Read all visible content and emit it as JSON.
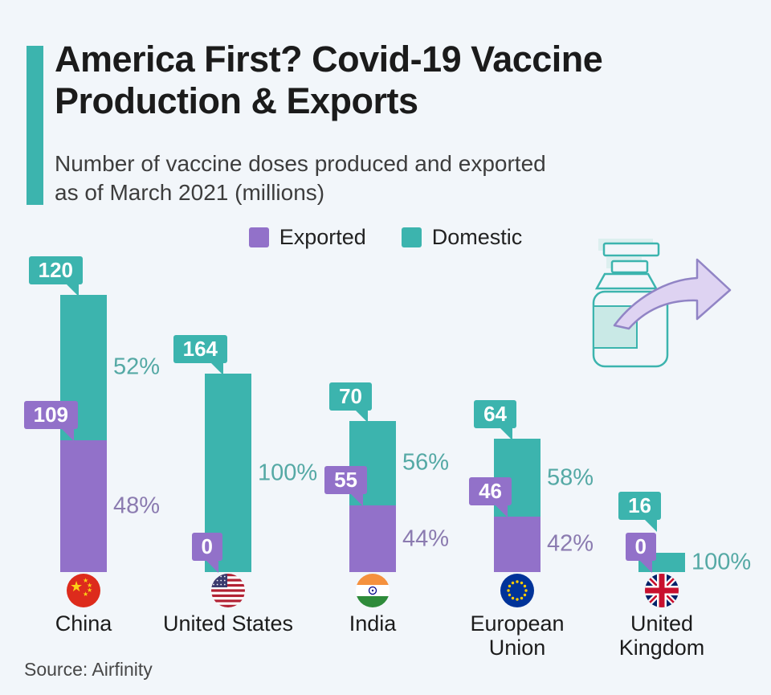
{
  "title": "America First? Covid-19 Vaccine Production & Exports",
  "title_lines": [
    "America First? Covid-19 Vaccine",
    "Production & Exports"
  ],
  "subtitle_lines": [
    "Number of vaccine doses produced and exported",
    "as of March 2021 (millions)"
  ],
  "legend": [
    {
      "label": "Exported",
      "color": "#9271c9"
    },
    {
      "label": "Domestic",
      "color": "#3cb4ae"
    }
  ],
  "source": "Source: Airfinity",
  "colors": {
    "background": "#f2f6fa",
    "teal": "#3cb4ae",
    "purple": "#9271c9",
    "pct_teal": "#55a9a5",
    "pct_purple": "#8b7bb0",
    "title_text": "#1b1b1b",
    "subtitle_text": "#3d3d3d",
    "arrow_fill": "#ded3f2",
    "arrow_stroke": "#9184c5"
  },
  "chart_data": {
    "type": "bar",
    "stacked": true,
    "title": "America First? Covid-19 Vaccine Production & Exports",
    "subtitle": "Number of vaccine doses produced and exported as of March 2021 (millions)",
    "unit": "millions of doses",
    "legend_position": "top-center",
    "series": [
      {
        "name": "Exported",
        "color": "#9271c9"
      },
      {
        "name": "Domestic",
        "color": "#3cb4ae"
      }
    ],
    "categories": [
      "China",
      "United States",
      "India",
      "European Union",
      "United Kingdom"
    ],
    "bars": [
      {
        "country": "China",
        "flag": "china",
        "label_lines": [
          "China"
        ],
        "domestic": 120,
        "exported": 109,
        "domestic_pct": "52%",
        "exported_pct": "48%"
      },
      {
        "country": "United States",
        "flag": "us",
        "label_lines": [
          "United States"
        ],
        "domestic": 164,
        "exported": 0,
        "domestic_pct": "100%",
        "exported_pct": ""
      },
      {
        "country": "India",
        "flag": "india",
        "label_lines": [
          "India"
        ],
        "domestic": 70,
        "exported": 55,
        "domestic_pct": "56%",
        "exported_pct": "44%"
      },
      {
        "country": "European Union",
        "flag": "eu",
        "label_lines": [
          "European",
          "Union"
        ],
        "domestic": 64,
        "exported": 46,
        "domestic_pct": "58%",
        "exported_pct": "42%"
      },
      {
        "country": "United Kingdom",
        "flag": "uk",
        "label_lines": [
          "United",
          "Kingdom"
        ],
        "domestic": 16,
        "exported": 0,
        "domestic_pct": "100%",
        "exported_pct": ""
      }
    ],
    "source": "Source: Airfinity"
  }
}
